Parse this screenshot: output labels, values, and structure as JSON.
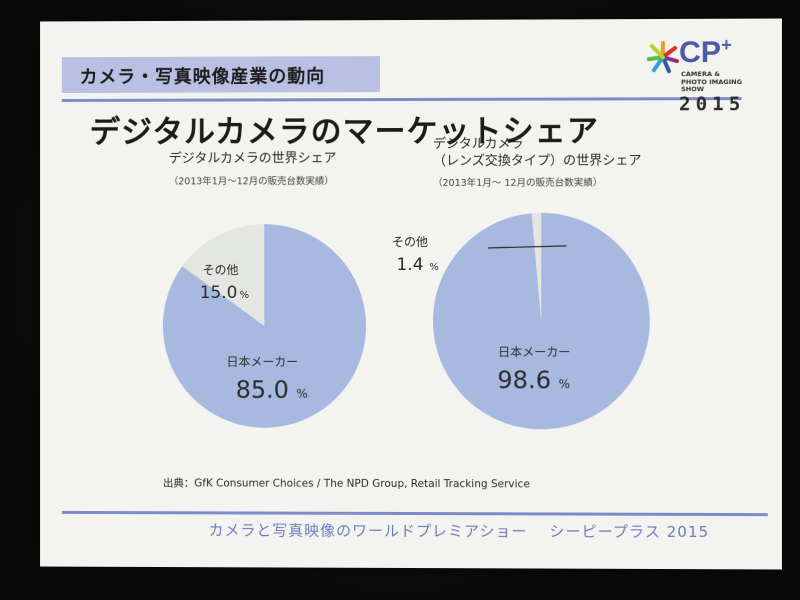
{
  "section_heading": "カメラ・写真映像産業の動向",
  "title": "デジタルカメラのマーケットシェア",
  "logo": {
    "mark": "CP",
    "sup": "+",
    "line1": "CAMERA &",
    "line2": "PHOTO IMAGING",
    "line3": "SHOW",
    "year": "2015"
  },
  "chart_data": [
    {
      "type": "pie",
      "title": "デジタルカメラの世界シェア",
      "subtitle": "（2013年1月〜12月の販売台数実績）",
      "slices": [
        {
          "label": "日本メーカー",
          "value": 85.0,
          "display": "85.0",
          "unit": "%",
          "color": "#a7b9de"
        },
        {
          "label": "その他",
          "value": 15.0,
          "display": "15.0",
          "unit": "%",
          "color": "#e4e6e2"
        }
      ]
    },
    {
      "type": "pie",
      "title_line1": "デジタルカメラ",
      "title_line2": "（レンズ交換タイプ）の世界シェア",
      "subtitle": "（2013年1月〜 12月の販売台数実績）",
      "slices": [
        {
          "label": "日本メーカー",
          "value": 98.6,
          "display": "98.6",
          "unit": "%",
          "color": "#a7b9de"
        },
        {
          "label": "その他",
          "value": 1.4,
          "display": "1.4",
          "unit": "%",
          "color": "#e4e6e2"
        }
      ]
    }
  ],
  "source": "出典：GfK Consumer Choices / The NPD Group, Retail Tracking Service",
  "footer": "カメラと写真映像のワールドプレミアショー　 シーピープラス 2015"
}
